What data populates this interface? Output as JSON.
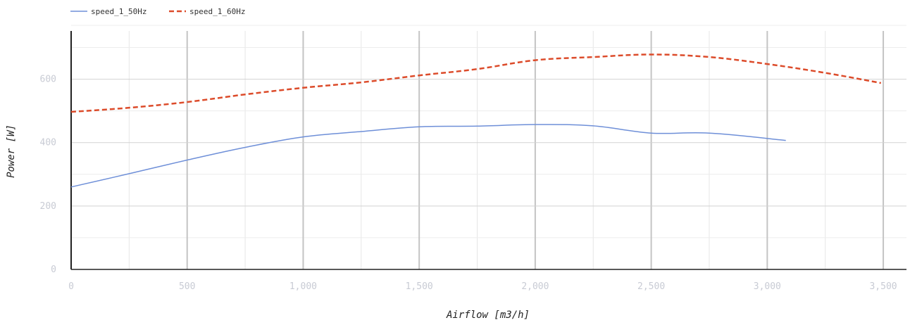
{
  "chart_data": {
    "type": "line",
    "title": "",
    "xlabel": "Airflow [m3/h]",
    "ylabel": "Power [W]",
    "xlim": [
      0,
      3600
    ],
    "ylim": [
      0,
      770
    ],
    "x_ticks": [
      0,
      500,
      1000,
      1500,
      2000,
      2500,
      3000,
      3500
    ],
    "x_tick_labels": [
      "0",
      "500",
      "1,000",
      "1,500",
      "2,000",
      "2,500",
      "3,000",
      "3,500"
    ],
    "y_ticks": [
      0,
      200,
      400,
      600
    ],
    "y_tick_labels": [
      "0",
      "200",
      "400",
      "600"
    ],
    "grid": true,
    "legend_position": "top-left",
    "series": [
      {
        "name": "speed_1_50Hz",
        "color": "#6e8fd8",
        "dash": "solid",
        "x": [
          0,
          250,
          500,
          750,
          1000,
          1250,
          1500,
          1750,
          2000,
          2250,
          2500,
          2750,
          3080
        ],
        "y": [
          260,
          302,
          345,
          385,
          418,
          435,
          450,
          452,
          457,
          453,
          430,
          430,
          407
        ]
      },
      {
        "name": "speed_1_60Hz",
        "color": "#dc4b2a",
        "dash": "dashed",
        "x": [
          0,
          250,
          500,
          750,
          1000,
          1250,
          1500,
          1750,
          2000,
          2250,
          2500,
          2750,
          3000,
          3250,
          3490
        ],
        "y": [
          497,
          510,
          528,
          552,
          573,
          590,
          612,
          632,
          660,
          670,
          678,
          670,
          648,
          620,
          588
        ]
      }
    ]
  }
}
